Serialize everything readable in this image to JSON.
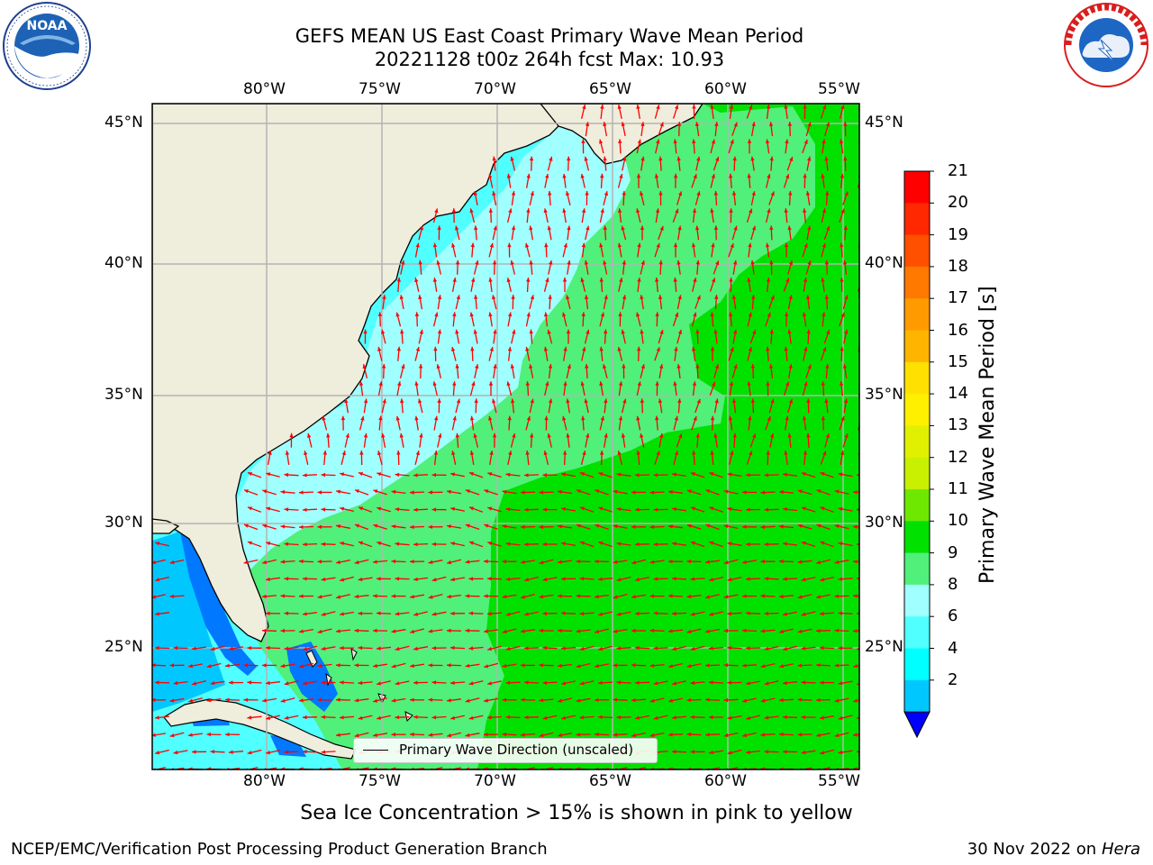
{
  "title": {
    "line1": "GEFS MEAN US East Coast Primary Wave Mean Period",
    "line2": "20221128 t00z 264h fcst   Max: 10.93"
  },
  "map": {
    "lon_labels": [
      "80°W",
      "75°W",
      "70°W",
      "65°W",
      "60°W",
      "55°W"
    ],
    "lat_labels": [
      "45°N",
      "40°N",
      "35°N",
      "30°N",
      "25°N"
    ],
    "lon_range": [
      "85°W",
      "54.3°W"
    ],
    "lat_range": [
      "20.2°N",
      "45.8°N"
    ],
    "land_color": "#efeddc",
    "grid": true
  },
  "legend": {
    "label": "Primary Wave Direction (unscaled)"
  },
  "colorbar": {
    "title": "Primary Wave Mean Period [s]",
    "levels": [
      "21",
      "20",
      "19",
      "18",
      "17",
      "16",
      "15",
      "14",
      "13",
      "12",
      "11",
      "10",
      "9",
      "8",
      "6",
      "4",
      "2"
    ],
    "colors": [
      "#ff0000",
      "#ff2800",
      "#ff5000",
      "#ff7800",
      "#ff9b00",
      "#ffb400",
      "#ffe000",
      "#fff000",
      "#e0f000",
      "#c8f000",
      "#6ee800",
      "#00e100",
      "#50f07a",
      "#a0ffff",
      "#50ffff",
      "#00ffff",
      "#00c8ff",
      "#0078ff"
    ],
    "extend_color": "#0000ff"
  },
  "arrows": {
    "color": "#ff0000"
  },
  "note": "Sea Ice Concentration > 15% is shown in pink to yellow",
  "footer": {
    "left": "NCEP/EMC/Verification Post Processing Product Generation Branch",
    "right_date": "30 Nov 2022 on",
    "right_host": "Hera"
  },
  "logos": {
    "left": "NOAA",
    "right": "NATIONAL WEATHER SERVICE"
  }
}
